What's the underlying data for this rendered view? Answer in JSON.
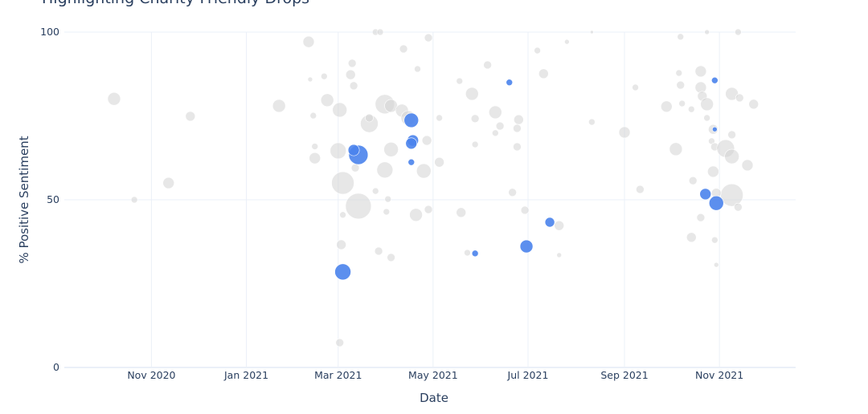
{
  "chart_data": {
    "type": "scatter",
    "title": "Highlighting Charity-Friendly Drops",
    "xlabel": "Date",
    "ylabel": "% Positive Sentiment",
    "xlim": [
      "2020-09-06",
      "2021-12-20"
    ],
    "ylim": [
      0,
      100
    ],
    "x_ticks": [
      {
        "date": "2020-11-01",
        "label": "Nov 2020"
      },
      {
        "date": "2021-01-01",
        "label": "Jan 2021"
      },
      {
        "date": "2021-03-01",
        "label": "Mar 2021"
      },
      {
        "date": "2021-05-01",
        "label": "May 2021"
      },
      {
        "date": "2021-07-01",
        "label": "Jul 2021"
      },
      {
        "date": "2021-09-01",
        "label": "Sep 2021"
      },
      {
        "date": "2021-11-01",
        "label": "Nov 2021"
      }
    ],
    "y_ticks": [
      {
        "value": 0,
        "label": "0"
      },
      {
        "value": 50,
        "label": "50"
      },
      {
        "value": 100,
        "label": "100"
      }
    ],
    "grid": true,
    "colors": {
      "other": "#d4d4d4",
      "highlight": "#4a83ec",
      "grid": "#ebf0f8"
    },
    "series": [
      {
        "highlight": false,
        "points": [
          [
            "2020-10-08",
            80.1,
            8
          ],
          [
            "2020-10-21",
            50,
            4
          ],
          [
            "2020-11-12",
            55,
            7
          ],
          [
            "2020-11-26",
            74.9,
            6
          ],
          [
            "2021-01-22",
            78,
            8
          ],
          [
            "2021-02-10",
            97.1,
            7
          ],
          [
            "2021-02-11",
            85.9,
            3
          ],
          [
            "2021-02-20",
            86.8,
            4
          ],
          [
            "2021-02-22",
            79.7,
            8
          ],
          [
            "2021-02-13",
            75.1,
            4
          ],
          [
            "2021-02-14",
            62.4,
            7
          ],
          [
            "2021-02-14",
            65.9,
            4
          ],
          [
            "2021-03-01",
            64.6,
            10
          ],
          [
            "2021-03-04",
            55,
            14
          ],
          [
            "2021-03-14",
            48.1,
            16
          ],
          [
            "2021-03-09",
            87.3,
            6
          ],
          [
            "2021-03-10",
            90.7,
            5
          ],
          [
            "2021-03-11",
            84,
            5
          ],
          [
            "2021-03-02",
            76.8,
            9
          ],
          [
            "2021-03-21",
            72.7,
            11
          ],
          [
            "2021-03-31",
            78.5,
            12
          ],
          [
            "2021-04-04",
            78,
            8
          ],
          [
            "2021-03-31",
            58.9,
            10
          ],
          [
            "2021-04-04",
            65,
            9
          ],
          [
            "2021-04-11",
            76.6,
            8
          ],
          [
            "2021-04-15",
            74.4,
            9
          ],
          [
            "2021-04-20",
            45.5,
            8
          ],
          [
            "2021-04-25",
            58.6,
            9
          ],
          [
            "2021-04-28",
            98.3,
            5
          ],
          [
            "2021-04-27",
            67.7,
            6
          ],
          [
            "2021-03-25",
            100,
            4
          ],
          [
            "2021-03-28",
            100,
            4
          ],
          [
            "2021-04-12",
            95,
            5
          ],
          [
            "2021-04-21",
            89,
            4
          ],
          [
            "2021-05-05",
            61.2,
            6
          ],
          [
            "2021-05-05",
            74.4,
            4
          ],
          [
            "2021-04-28",
            47.1,
            5
          ],
          [
            "2021-03-25",
            52.6,
            4
          ],
          [
            "2021-04-02",
            50.2,
            4
          ],
          [
            "2021-03-27",
            34.7,
            5
          ],
          [
            "2021-04-04",
            32.8,
            5
          ],
          [
            "2021-03-03",
            36.6,
            6
          ],
          [
            "2021-03-02",
            7.4,
            5
          ],
          [
            "2021-03-04",
            45.5,
            4
          ],
          [
            "2021-03-21",
            74.4,
            5
          ],
          [
            "2021-04-01",
            46.4,
            4
          ],
          [
            "2021-03-12",
            59.5,
            5
          ],
          [
            "2021-05-19",
            46.2,
            6
          ],
          [
            "2021-05-18",
            85.4,
            4
          ],
          [
            "2021-05-26",
            81.6,
            8
          ],
          [
            "2021-05-28",
            74.2,
            5
          ],
          [
            "2021-05-23",
            34.2,
            4
          ],
          [
            "2021-05-28",
            66.5,
            4
          ],
          [
            "2021-06-05",
            90.2,
            5
          ],
          [
            "2021-06-10",
            76.1,
            8
          ],
          [
            "2021-06-10",
            69.9,
            4
          ],
          [
            "2021-06-13",
            72,
            5
          ],
          [
            "2021-06-25",
            73.9,
            6
          ],
          [
            "2021-06-24",
            71.3,
            5
          ],
          [
            "2021-06-24",
            65.8,
            5
          ],
          [
            "2021-06-21",
            52.2,
            5
          ],
          [
            "2021-06-29",
            46.9,
            5
          ],
          [
            "2021-07-07",
            94.5,
            4
          ],
          [
            "2021-07-11",
            87.6,
            6
          ],
          [
            "2021-07-26",
            97.1,
            3
          ],
          [
            "2021-07-21",
            33.5,
            3
          ],
          [
            "2021-07-21",
            42.3,
            6
          ],
          [
            "2021-08-11",
            100,
            2
          ],
          [
            "2021-08-11",
            73.2,
            4
          ],
          [
            "2021-09-01",
            70.1,
            7
          ],
          [
            "2021-09-08",
            83.5,
            4
          ],
          [
            "2021-09-11",
            53.1,
            5
          ],
          [
            "2021-09-28",
            77.8,
            7
          ],
          [
            "2021-10-04",
            65.1,
            8
          ],
          [
            "2021-10-06",
            87.8,
            4
          ],
          [
            "2021-10-07",
            98.6,
            4
          ],
          [
            "2021-10-07",
            84.2,
            5
          ],
          [
            "2021-10-08",
            78.7,
            4
          ],
          [
            "2021-10-14",
            77,
            4
          ],
          [
            "2021-10-14",
            38.8,
            6
          ],
          [
            "2021-10-15",
            55.7,
            5
          ],
          [
            "2021-10-20",
            88.3,
            7
          ],
          [
            "2021-10-20",
            83.5,
            7
          ],
          [
            "2021-10-21",
            80.9,
            6
          ],
          [
            "2021-10-24",
            78.5,
            8
          ],
          [
            "2021-10-24",
            74.4,
            4
          ],
          [
            "2021-10-24",
            100,
            3
          ],
          [
            "2021-10-28",
            71,
            6
          ],
          [
            "2021-10-27",
            67.5,
            4
          ],
          [
            "2021-10-28",
            58.4,
            7
          ],
          [
            "2021-10-29",
            65.8,
            5
          ],
          [
            "2021-11-05",
            65.3,
            11
          ],
          [
            "2021-11-09",
            62.9,
            9
          ],
          [
            "2021-11-13",
            100,
            4
          ],
          [
            "2021-11-09",
            81.6,
            8
          ],
          [
            "2021-11-14",
            80.4,
            5
          ],
          [
            "2021-11-23",
            78.5,
            6
          ],
          [
            "2021-11-19",
            60.3,
            7
          ],
          [
            "2021-11-09",
            51.4,
            14
          ],
          [
            "2021-10-30",
            52,
            6
          ],
          [
            "2021-11-13",
            47.8,
            5
          ],
          [
            "2021-11-09",
            69.4,
            5
          ],
          [
            "2021-10-29",
            38,
            4
          ],
          [
            "2021-10-30",
            30.6,
            3
          ],
          [
            "2021-10-20",
            44.7,
            5
          ]
        ]
      },
      {
        "highlight": true,
        "points": [
          [
            "2021-03-04",
            28.5,
            10
          ],
          [
            "2021-03-14",
            63.4,
            12
          ],
          [
            "2021-03-11",
            64.8,
            7
          ],
          [
            "2021-04-17",
            73.7,
            9
          ],
          [
            "2021-04-18",
            67.7,
            7
          ],
          [
            "2021-04-17",
            66.8,
            7
          ],
          [
            "2021-04-17",
            61.2,
            4
          ],
          [
            "2021-05-28",
            34,
            4
          ],
          [
            "2021-06-19",
            85,
            4
          ],
          [
            "2021-06-30",
            36.1,
            8
          ],
          [
            "2021-07-15",
            43.3,
            6
          ],
          [
            "2021-10-23",
            51.7,
            7
          ],
          [
            "2021-10-30",
            49,
            9
          ],
          [
            "2021-10-29",
            85.6,
            4
          ],
          [
            "2021-10-29",
            71,
            3
          ]
        ]
      }
    ]
  }
}
